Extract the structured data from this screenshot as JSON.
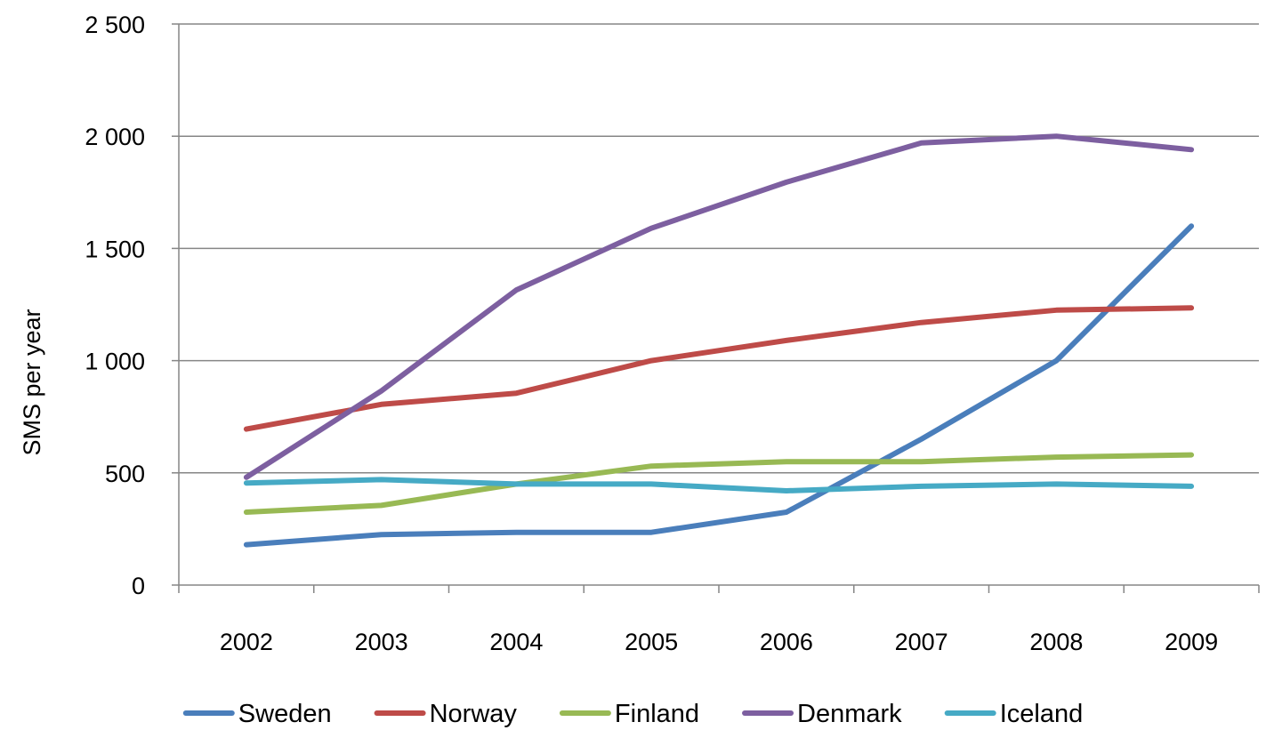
{
  "chart_data": {
    "type": "line",
    "title": "",
    "xlabel": "",
    "ylabel": "SMS per year",
    "categories": [
      "2002",
      "2003",
      "2004",
      "2005",
      "2006",
      "2007",
      "2008",
      "2009"
    ],
    "ylim": [
      0,
      2500
    ],
    "yticks": [
      0,
      500,
      1000,
      1500,
      2000,
      2500
    ],
    "ytick_labels": [
      "0",
      "500",
      "1 000",
      "1 500",
      "2 000",
      "2 500"
    ],
    "grid": "horizontal",
    "legend_position": "bottom",
    "series": [
      {
        "name": "Sweden",
        "color": "#4A7EBB",
        "values": [
          180,
          225,
          235,
          235,
          325,
          650,
          1000,
          1600
        ]
      },
      {
        "name": "Norway",
        "color": "#BE4B48",
        "values": [
          695,
          805,
          855,
          1000,
          1090,
          1170,
          1225,
          1235
        ]
      },
      {
        "name": "Finland",
        "color": "#98B954",
        "values": [
          325,
          355,
          450,
          530,
          550,
          550,
          570,
          580
        ]
      },
      {
        "name": "Denmark",
        "color": "#7D5FA0",
        "values": [
          480,
          865,
          1315,
          1590,
          1795,
          1970,
          2000,
          1940
        ]
      },
      {
        "name": "Iceland",
        "color": "#46AAC5",
        "values": [
          455,
          470,
          450,
          450,
          420,
          440,
          450,
          440
        ]
      }
    ]
  }
}
